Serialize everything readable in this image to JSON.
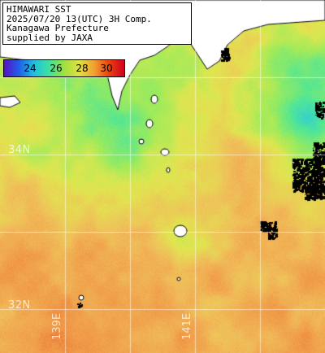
{
  "title_box": {
    "lines": [
      "HIMAWARI SST",
      "2025/07/20 13(UTC) 3H Comp.",
      "Kanagawa Prefecture",
      "supplied by JAXA"
    ]
  },
  "colorbar": {
    "ticks": [
      "24",
      "26",
      "28",
      "30"
    ],
    "colors": [
      "#5a10c8",
      "#2060e8",
      "#20c0e0",
      "#40e0a0",
      "#a0e040",
      "#e0e040",
      "#f0a030",
      "#e84010",
      "#d00020"
    ]
  },
  "grid": {
    "lat_labels": [
      "34N",
      "32N"
    ],
    "lon_labels": [
      "139E",
      "141E"
    ]
  },
  "colors": {
    "land": "#ffffff",
    "no_data": "#000000",
    "warm_sea": "#f0b060",
    "cool_sea": "#80e090"
  }
}
